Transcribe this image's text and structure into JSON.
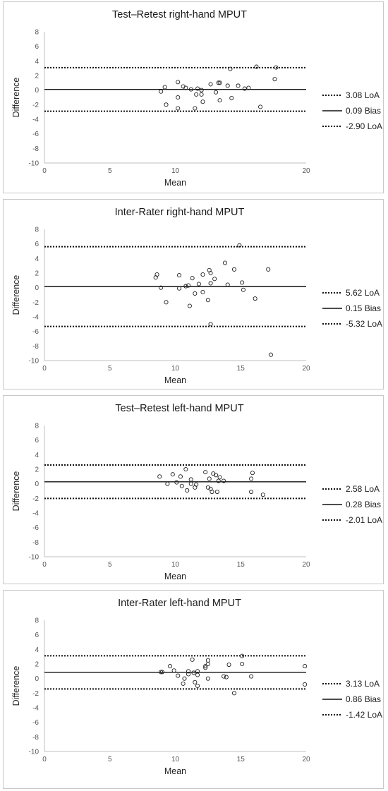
{
  "chart_data": [
    {
      "type": "scatter",
      "title": "Test–Retest right-hand MPUT",
      "xlabel": "Mean",
      "ylabel": "Difference",
      "xlim": [
        0,
        20
      ],
      "ylim": [
        -10,
        8
      ],
      "xticks": [
        "0",
        "5",
        "10",
        "20"
      ],
      "xtick_values": [
        0,
        5,
        10,
        20
      ],
      "yticks": [
        "8",
        "6",
        "4",
        "2",
        "0",
        "-2",
        "-4",
        "-6",
        "-8",
        "-10"
      ],
      "ytick_values": [
        8,
        6,
        4,
        2,
        0,
        -2,
        -4,
        -6,
        -8,
        -10
      ],
      "lines": [
        {
          "label": "3.08 LoA",
          "value": 3.08,
          "style": "dotted"
        },
        {
          "label": "0.09 Bias",
          "value": 0.09,
          "style": "solid"
        },
        {
          "label": "-2.90 LoA",
          "value": -2.9,
          "style": "dotted"
        }
      ],
      "points": [
        [
          8.9,
          -0.2
        ],
        [
          9.2,
          0.4
        ],
        [
          9.3,
          -2.0
        ],
        [
          10.2,
          -1.0
        ],
        [
          10.2,
          1.1
        ],
        [
          10.2,
          -2.5
        ],
        [
          10.6,
          0.5
        ],
        [
          10.8,
          0.3
        ],
        [
          11.2,
          0.1
        ],
        [
          11.5,
          -2.5
        ],
        [
          11.6,
          -0.6
        ],
        [
          11.7,
          0.2
        ],
        [
          12.0,
          0.0
        ],
        [
          12.0,
          -0.6
        ],
        [
          12.1,
          -1.6
        ],
        [
          12.7,
          0.8
        ],
        [
          13.1,
          -0.3
        ],
        [
          13.3,
          1.0
        ],
        [
          13.4,
          1.0
        ],
        [
          13.4,
          -1.4
        ],
        [
          14.0,
          0.6
        ],
        [
          14.2,
          2.9
        ],
        [
          14.3,
          -1.1
        ],
        [
          14.8,
          0.6
        ],
        [
          15.3,
          0.2
        ],
        [
          15.6,
          0.3
        ],
        [
          16.2,
          3.2
        ],
        [
          16.5,
          -2.3
        ],
        [
          17.6,
          1.5
        ],
        [
          17.7,
          3.1
        ]
      ]
    },
    {
      "type": "scatter",
      "title": "Inter-Rater right-hand MPUT",
      "xlabel": "Mean",
      "ylabel": "Difference",
      "xlim": [
        0,
        20
      ],
      "ylim": [
        -10,
        8
      ],
      "xticks": [
        "0",
        "5",
        "10",
        "15",
        "20"
      ],
      "xtick_values": [
        0,
        5,
        10,
        15,
        20
      ],
      "yticks": [
        "8",
        "6",
        "4",
        "2",
        "0",
        "-2",
        "-4",
        "-6",
        "-8",
        "-10"
      ],
      "ytick_values": [
        8,
        6,
        4,
        2,
        0,
        -2,
        -4,
        -6,
        -8,
        -10
      ],
      "lines": [
        {
          "label": "5.62 LoA",
          "value": 5.62,
          "style": "dotted"
        },
        {
          "label": "0.15 Bias",
          "value": 0.15,
          "style": "solid"
        },
        {
          "label": "-5.32 LoA",
          "value": -5.32,
          "style": "dotted"
        }
      ],
      "points": [
        [
          8.5,
          1.4
        ],
        [
          8.6,
          1.8
        ],
        [
          8.9,
          0.0
        ],
        [
          9.3,
          -2.0
        ],
        [
          10.3,
          1.7
        ],
        [
          10.3,
          -0.1
        ],
        [
          10.8,
          0.2
        ],
        [
          11.0,
          0.3
        ],
        [
          11.1,
          -2.5
        ],
        [
          11.3,
          1.3
        ],
        [
          11.5,
          -0.8
        ],
        [
          11.8,
          0.5
        ],
        [
          12.1,
          -0.6
        ],
        [
          12.1,
          1.8
        ],
        [
          12.5,
          -1.7
        ],
        [
          12.6,
          2.4
        ],
        [
          12.7,
          0.6
        ],
        [
          12.7,
          2.0
        ],
        [
          12.7,
          -5.0
        ],
        [
          13.0,
          1.2
        ],
        [
          13.8,
          3.4
        ],
        [
          14.0,
          0.4
        ],
        [
          14.5,
          2.5
        ],
        [
          14.9,
          5.8
        ],
        [
          15.1,
          0.7
        ],
        [
          15.2,
          -0.3
        ],
        [
          16.1,
          -1.5
        ],
        [
          17.1,
          2.5
        ],
        [
          17.3,
          -9.2
        ]
      ]
    },
    {
      "type": "scatter",
      "title": "Test–Retest left-hand MPUT",
      "xlabel": "Mean",
      "ylabel": "Difference",
      "xlim": [
        0,
        20
      ],
      "ylim": [
        -10,
        8
      ],
      "xticks": [
        "0",
        "5",
        "10",
        "15",
        "20"
      ],
      "xtick_values": [
        0,
        5,
        10,
        15,
        20
      ],
      "yticks": [
        "8",
        "6",
        "4",
        "2",
        "0",
        "-2",
        "-4",
        "-6",
        "-8",
        "-10"
      ],
      "ytick_values": [
        8,
        6,
        4,
        2,
        0,
        -2,
        -4,
        -6,
        -8,
        -10
      ],
      "lines": [
        {
          "label": "2.58 LoA",
          "value": 2.58,
          "style": "dotted"
        },
        {
          "label": "0.28 Bias",
          "value": 0.28,
          "style": "solid"
        },
        {
          "label": "-2.01 LoA",
          "value": -2.01,
          "style": "dotted"
        }
      ],
      "points": [
        [
          8.8,
          1.0
        ],
        [
          9.4,
          0.0
        ],
        [
          9.8,
          1.3
        ],
        [
          10.1,
          0.2
        ],
        [
          10.4,
          1.0
        ],
        [
          10.5,
          -0.3
        ],
        [
          10.8,
          2.0
        ],
        [
          10.9,
          -0.9
        ],
        [
          11.2,
          0.6
        ],
        [
          11.2,
          0.0
        ],
        [
          11.5,
          -0.5
        ],
        [
          11.6,
          -0.1
        ],
        [
          12.3,
          1.6
        ],
        [
          12.5,
          -0.5
        ],
        [
          12.6,
          0.7
        ],
        [
          12.7,
          -0.7
        ],
        [
          12.8,
          -1.1
        ],
        [
          12.9,
          1.4
        ],
        [
          13.1,
          1.2
        ],
        [
          13.2,
          -1.1
        ],
        [
          13.3,
          0.4
        ],
        [
          13.4,
          0.9
        ],
        [
          13.7,
          0.4
        ],
        [
          15.8,
          0.7
        ],
        [
          15.8,
          -1.1
        ],
        [
          15.9,
          1.5
        ],
        [
          16.7,
          -1.5
        ]
      ]
    },
    {
      "type": "scatter",
      "title": "Inter-Rater left-hand MPUT",
      "xlabel": "Mean",
      "ylabel": "Difference",
      "xlim": [
        0,
        20
      ],
      "ylim": [
        -10,
        8
      ],
      "xticks": [
        "0",
        "5",
        "10",
        "15",
        "20"
      ],
      "xtick_values": [
        0,
        5,
        10,
        15,
        20
      ],
      "yticks": [
        "8",
        "6",
        "4",
        "2",
        "0",
        "-2",
        "-4",
        "-6",
        "-8",
        "-10"
      ],
      "ytick_values": [
        8,
        6,
        4,
        2,
        0,
        -2,
        -4,
        -6,
        -8,
        -10
      ],
      "lines": [
        {
          "label": "3.13 LoA",
          "value": 3.13,
          "style": "dotted"
        },
        {
          "label": "0.86 Bias",
          "value": 0.86,
          "style": "solid"
        },
        {
          "label": "-1.42 LoA",
          "value": -1.42,
          "style": "dotted"
        }
      ],
      "points": [
        [
          8.9,
          0.9
        ],
        [
          9.0,
          0.9
        ],
        [
          9.6,
          1.7
        ],
        [
          9.9,
          1.1
        ],
        [
          10.2,
          0.4
        ],
        [
          10.6,
          -0.7
        ],
        [
          10.7,
          0.0
        ],
        [
          11.0,
          0.6
        ],
        [
          11.0,
          1.0
        ],
        [
          11.3,
          2.6
        ],
        [
          11.4,
          0.8
        ],
        [
          11.5,
          -0.5
        ],
        [
          11.7,
          0.5
        ],
        [
          11.7,
          -1.0
        ],
        [
          11.7,
          1.0
        ],
        [
          12.3,
          1.5
        ],
        [
          12.3,
          1.7
        ],
        [
          12.5,
          2.5
        ],
        [
          12.5,
          2.0
        ],
        [
          12.5,
          0.0
        ],
        [
          13.7,
          0.3
        ],
        [
          13.9,
          0.2
        ],
        [
          14.1,
          1.9
        ],
        [
          14.5,
          -2.0
        ],
        [
          15.1,
          3.1
        ],
        [
          15.1,
          2.0
        ],
        [
          15.8,
          0.3
        ],
        [
          19.9,
          1.7
        ],
        [
          19.9,
          -0.8
        ]
      ]
    }
  ]
}
